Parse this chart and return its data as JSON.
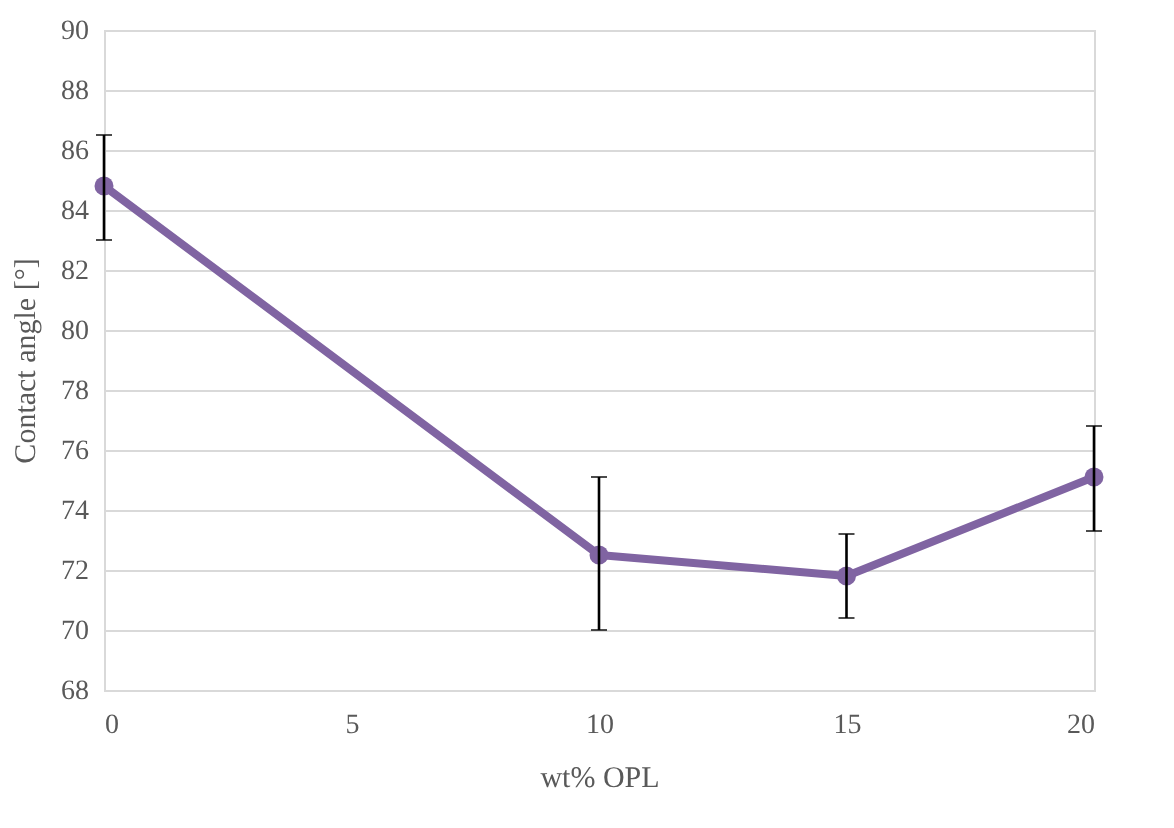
{
  "chart_data": {
    "type": "line",
    "xlabel": "wt% OPL",
    "ylabel": "Contact angle [°]",
    "x": [
      0,
      10,
      15,
      20
    ],
    "series": [
      {
        "color": "#8064a2",
        "values": [
          84.8,
          72.5,
          71.8,
          75.1
        ],
        "errors": [
          [
            83.0,
            86.5
          ],
          [
            70.0,
            75.1
          ],
          [
            70.4,
            73.2
          ],
          [
            73.3,
            76.8
          ]
        ]
      }
    ],
    "xlim": [
      0,
      20
    ],
    "xticks": [
      0,
      5,
      10,
      15,
      20
    ],
    "ylim": [
      68,
      90
    ],
    "yticks": [
      68,
      70,
      72,
      74,
      76,
      78,
      80,
      82,
      84,
      86,
      88,
      90
    ],
    "grid": "y",
    "marker": "circle",
    "line_style": "solid"
  }
}
